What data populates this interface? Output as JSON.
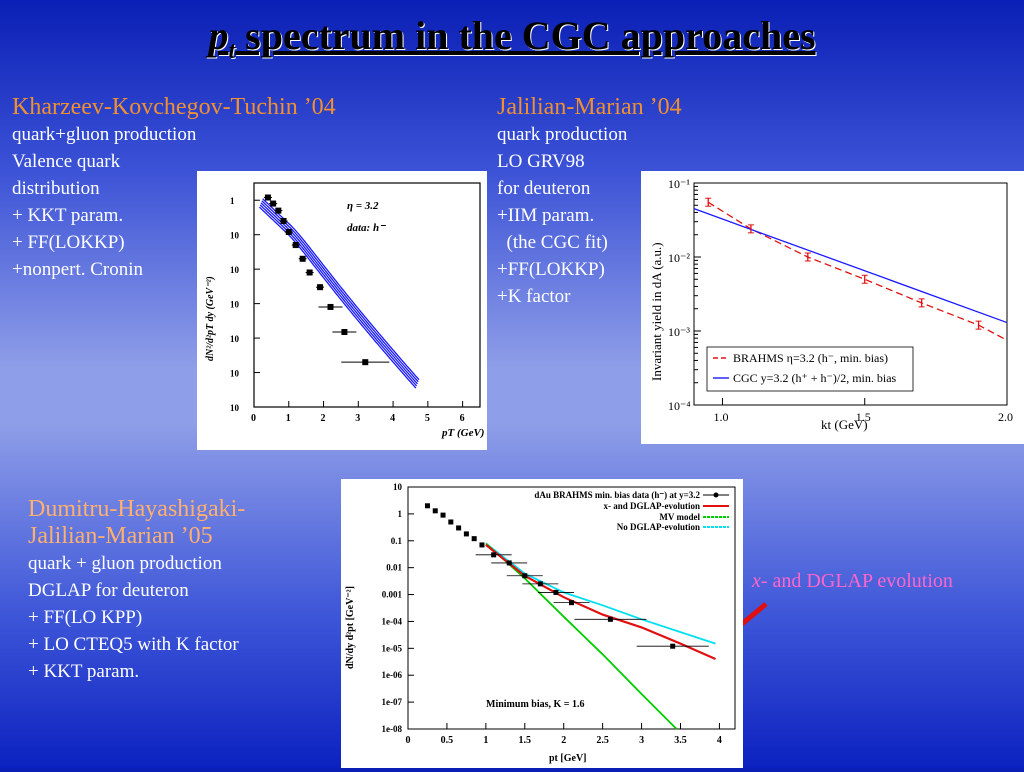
{
  "slide": {
    "title_var": "p",
    "title_sub": "t",
    "title_rest": " spectrum in the CGC approaches"
  },
  "kkt": {
    "head": "Kharzeev-Kovchegov-Tuchin ’04",
    "lines": [
      "quark+gluon production",
      "Valence quark",
      "distribution",
      "+ KKT param.",
      "+ FF(LOKKP)",
      "+nonpert. Cronin"
    ]
  },
  "jm": {
    "head": "Jalilian-Marian ’04",
    "lines": [
      "quark production",
      "LO GRV98",
      "for deuteron",
      "+IIM param.",
      "  (the CGC fit)",
      "+FF(LOKKP)",
      "+K factor"
    ]
  },
  "dhj": {
    "head1": "Dumitru-Hayashigaki-",
    "head2": "Jalilian-Marian ’05",
    "lines": [
      "quark + gluon production",
      "DGLAP for deuteron",
      "+ FF(LO KPP)",
      "+ LO CTEQ5 with K factor",
      "+ KKT param."
    ]
  },
  "annotation": {
    "x_italic": "x",
    "text": "- and DGLAP evolution"
  },
  "plot1": {
    "legend1": "η = 3.2",
    "legend2": "data: h⁻",
    "ylabel": "dN²/d²pT dy (GeV⁻²)",
    "xlabel": "pT (GeV)",
    "yticks": [
      "1",
      "10",
      "10",
      "10",
      "10",
      "10",
      "10"
    ],
    "xticks": [
      "0",
      "1",
      "2",
      "3",
      "4",
      "5",
      "6"
    ]
  },
  "plot2": {
    "ylabel": "Invariant yield in dA (a.u.)",
    "xlabel": "kt (GeV)",
    "yticks": [
      "10⁻¹",
      "10⁻²",
      "10⁻³",
      "10⁻⁴"
    ],
    "xticks": [
      "1.0",
      "1.5",
      "2.0"
    ],
    "legend": [
      "BRAHMS η=3.2 (h⁻, min. bias)",
      "CGC y=3.2 (h⁺ + h⁻)/2, min. bias"
    ]
  },
  "plot3": {
    "ylabel": "dN/dy d²pt [GeV⁻²]",
    "xlabel": "pt [GeV]",
    "yticks": [
      "10",
      "1",
      "0.1",
      "0.01",
      "0.001",
      "1e-04",
      "1e-05",
      "1e-06",
      "1e-07",
      "1e-08"
    ],
    "xticks": [
      "0",
      "0.5",
      "1",
      "1.5",
      "2",
      "2.5",
      "3",
      "3.5",
      "4"
    ],
    "legend": [
      "dAu BRAHMS min. bias data (h⁻) at y=3.2",
      "x- and DGLAP-evolution",
      "MV model",
      "No DGLAP-evolution"
    ],
    "note": "Minimum bias,   K = 1.6"
  },
  "colors": {
    "red": "#e01010",
    "green": "#00cc00",
    "cyan": "#00e0f0",
    "blue": "#1a1aff",
    "peach_text": "#ffb070",
    "orange_text": "#f09030"
  },
  "chart_data": [
    {
      "type": "scatter",
      "title": "",
      "xlabel": "pT (GeV)",
      "ylabel": "dN²/d²pT dy (GeV⁻²)",
      "xlim": [
        0,
        6.5
      ],
      "log_y": true,
      "series": [
        {
          "name": "data: h⁻",
          "x": [
            0.4,
            0.55,
            0.7,
            0.85,
            1.0,
            1.2,
            1.4,
            1.6,
            1.9,
            2.2,
            2.6,
            3.2
          ],
          "y": [
            1.2,
            0.8,
            0.5,
            0.25,
            0.12,
            0.05,
            0.02,
            0.008,
            0.003,
            0.0008,
            0.00015,
            2e-05
          ]
        }
      ]
    },
    {
      "type": "line",
      "title": "",
      "xlabel": "kt (GeV)",
      "ylabel": "Invariant yield in dA (a.u.)",
      "xlim": [
        0.9,
        2.0
      ],
      "ylim": [
        0.0001,
        0.1
      ],
      "log_y": true,
      "series": [
        {
          "name": "BRAHMS η=3.2 (h⁻, min. bias)",
          "x": [
            0.95,
            1.1,
            1.3,
            1.5,
            1.7,
            1.9
          ],
          "y": [
            0.055,
            0.024,
            0.01,
            0.005,
            0.0024,
            0.0012
          ]
        },
        {
          "name": "CGC y=3.2 (h⁺ + h⁻)/2, min. bias",
          "x": [
            0.9,
            2.0
          ],
          "y": [
            0.045,
            0.0013
          ]
        }
      ]
    },
    {
      "type": "line",
      "title": "",
      "xlabel": "pt [GeV]",
      "ylabel": "dN/dy d²pt [GeV⁻²]",
      "xlim": [
        0,
        4.2
      ],
      "ylim": [
        1e-08,
        10
      ],
      "log_y": true,
      "annotations": [
        "Minimum bias,   K = 1.6"
      ],
      "series": [
        {
          "name": "dAu BRAHMS min. bias data (h⁻) at y=3.2",
          "x": [
            0.25,
            0.35,
            0.45,
            0.55,
            0.65,
            0.75,
            0.85,
            0.95,
            1.1,
            1.3,
            1.5,
            1.7,
            1.9,
            2.1,
            2.6,
            3.4
          ],
          "y": [
            2.0,
            1.3,
            0.9,
            0.5,
            0.3,
            0.18,
            0.12,
            0.07,
            0.03,
            0.015,
            0.005,
            0.0025,
            0.0012,
            0.0005,
            0.00012,
            1.2e-05
          ]
        },
        {
          "name": "x- and DGLAP-evolution",
          "x": [
            1.0,
            1.5,
            2.0,
            2.5,
            3.0,
            3.5,
            3.95
          ],
          "y": [
            0.07,
            0.005,
            0.0008,
            0.00018,
            6e-05,
            1.5e-05,
            4e-06
          ]
        },
        {
          "name": "MV model",
          "x": [
            1.0,
            1.5,
            2.0,
            2.5,
            3.0,
            3.45
          ],
          "y": [
            0.08,
            0.004,
            0.00015,
            6e-06,
            2e-07,
            1e-08
          ]
        },
        {
          "name": "No DGLAP-evolution",
          "x": [
            1.0,
            1.5,
            2.0,
            2.5,
            3.0,
            3.5,
            3.95
          ],
          "y": [
            0.08,
            0.006,
            0.0012,
            0.0004,
            0.00012,
            4e-05,
            1.5e-05
          ]
        }
      ]
    }
  ]
}
